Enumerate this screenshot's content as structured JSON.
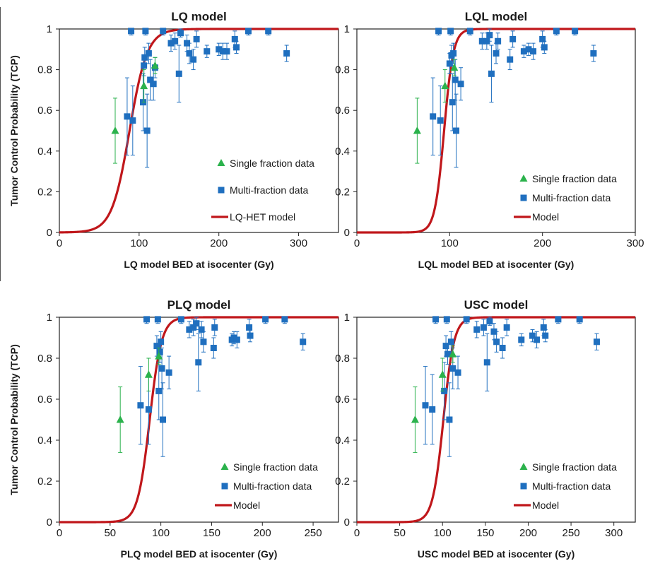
{
  "colors": {
    "model_curve": "#c0171b",
    "single_fraction": "#2bb24c",
    "multi_fraction": "#1f6fbf",
    "axis": "#222222"
  },
  "chart_data": [
    {
      "type": "scatter",
      "title": "LQ model",
      "xlabel": "LQ model BED at isocenter (Gy)",
      "ylabel": "Tumor Control Probability (TCP)",
      "xlim": [
        0,
        350
      ],
      "ylim": [
        0,
        1
      ],
      "xticks": [
        0,
        100,
        200,
        300
      ],
      "yticks": [
        0,
        0.2,
        0.4,
        0.6,
        0.8,
        1
      ],
      "legend": [
        "Single fraction data",
        "Multi-fraction data",
        "LQ-HET model"
      ],
      "curve": {
        "name": "LQ-HET model",
        "x0": 88,
        "k": 0.09
      },
      "single_fraction": [
        {
          "x": 70,
          "y": 0.5,
          "err": 0.16
        },
        {
          "x": 106,
          "y": 0.72,
          "err": 0.08
        },
        {
          "x": 120,
          "y": 0.82,
          "err": 0.04
        }
      ],
      "multi_fraction": [
        {
          "x": 85,
          "y": 0.57,
          "err": 0.19
        },
        {
          "x": 90,
          "y": 0.99,
          "err": 0.02
        },
        {
          "x": 92,
          "y": 0.55,
          "err": 0.17
        },
        {
          "x": 105,
          "y": 0.64,
          "err": 0.14
        },
        {
          "x": 106,
          "y": 0.82,
          "err": 0.05
        },
        {
          "x": 107,
          "y": 0.86,
          "err": 0.05
        },
        {
          "x": 108,
          "y": 0.99,
          "err": 0.02
        },
        {
          "x": 110,
          "y": 0.5,
          "err": 0.18
        },
        {
          "x": 112,
          "y": 0.88,
          "err": 0.05
        },
        {
          "x": 114,
          "y": 0.75,
          "err": 0.1
        },
        {
          "x": 118,
          "y": 0.73,
          "err": 0.08
        },
        {
          "x": 120,
          "y": 0.81,
          "err": 0.05
        },
        {
          "x": 130,
          "y": 0.99,
          "err": 0.02
        },
        {
          "x": 140,
          "y": 0.93,
          "err": 0.04
        },
        {
          "x": 145,
          "y": 0.94,
          "err": 0.04
        },
        {
          "x": 150,
          "y": 0.78,
          "err": 0.14
        },
        {
          "x": 152,
          "y": 0.98,
          "err": 0.02
        },
        {
          "x": 160,
          "y": 0.93,
          "err": 0.04
        },
        {
          "x": 163,
          "y": 0.88,
          "err": 0.05
        },
        {
          "x": 168,
          "y": 0.85,
          "err": 0.05
        },
        {
          "x": 172,
          "y": 0.95,
          "err": 0.04
        },
        {
          "x": 185,
          "y": 0.89,
          "err": 0.03
        },
        {
          "x": 200,
          "y": 0.9,
          "err": 0.03
        },
        {
          "x": 205,
          "y": 0.89,
          "err": 0.04
        },
        {
          "x": 210,
          "y": 0.89,
          "err": 0.04
        },
        {
          "x": 220,
          "y": 0.95,
          "err": 0.04
        },
        {
          "x": 222,
          "y": 0.91,
          "err": 0.03
        },
        {
          "x": 237,
          "y": 0.99,
          "err": 0.02
        },
        {
          "x": 262,
          "y": 0.99,
          "err": 0.02
        },
        {
          "x": 285,
          "y": 0.88,
          "err": 0.04
        }
      ]
    },
    {
      "type": "scatter",
      "title": "LQL model",
      "xlabel": "LQL model BED at isocenter (Gy)",
      "ylabel": "",
      "xlim": [
        0,
        300
      ],
      "ylim": [
        0,
        1
      ],
      "xticks": [
        0,
        100,
        200,
        300
      ],
      "yticks": [
        0,
        0.2,
        0.4,
        0.6,
        0.8,
        1
      ],
      "legend": [
        "Single fraction data",
        "Multi-fraction data",
        "Model"
      ],
      "curve": {
        "name": "Model",
        "x0": 94,
        "k": 0.2
      },
      "single_fraction": [
        {
          "x": 65,
          "y": 0.5,
          "err": 0.16
        },
        {
          "x": 95,
          "y": 0.72,
          "err": 0.08
        },
        {
          "x": 105,
          "y": 0.81,
          "err": 0.04
        }
      ],
      "multi_fraction": [
        {
          "x": 82,
          "y": 0.57,
          "err": 0.19
        },
        {
          "x": 88,
          "y": 0.99,
          "err": 0.02
        },
        {
          "x": 90,
          "y": 0.55,
          "err": 0.17
        },
        {
          "x": 100,
          "y": 0.83,
          "err": 0.05
        },
        {
          "x": 101,
          "y": 0.99,
          "err": 0.02
        },
        {
          "x": 102,
          "y": 0.87,
          "err": 0.05
        },
        {
          "x": 103,
          "y": 0.64,
          "err": 0.14
        },
        {
          "x": 104,
          "y": 0.88,
          "err": 0.05
        },
        {
          "x": 106,
          "y": 0.75,
          "err": 0.1
        },
        {
          "x": 107,
          "y": 0.5,
          "err": 0.18
        },
        {
          "x": 112,
          "y": 0.73,
          "err": 0.08
        },
        {
          "x": 122,
          "y": 0.99,
          "err": 0.02
        },
        {
          "x": 135,
          "y": 0.94,
          "err": 0.04
        },
        {
          "x": 140,
          "y": 0.94,
          "err": 0.04
        },
        {
          "x": 143,
          "y": 0.97,
          "err": 0.03
        },
        {
          "x": 145,
          "y": 0.78,
          "err": 0.14
        },
        {
          "x": 150,
          "y": 0.88,
          "err": 0.05
        },
        {
          "x": 152,
          "y": 0.94,
          "err": 0.04
        },
        {
          "x": 165,
          "y": 0.85,
          "err": 0.05
        },
        {
          "x": 168,
          "y": 0.95,
          "err": 0.04
        },
        {
          "x": 180,
          "y": 0.89,
          "err": 0.03
        },
        {
          "x": 185,
          "y": 0.9,
          "err": 0.03
        },
        {
          "x": 190,
          "y": 0.89,
          "err": 0.04
        },
        {
          "x": 200,
          "y": 0.95,
          "err": 0.04
        },
        {
          "x": 202,
          "y": 0.91,
          "err": 0.03
        },
        {
          "x": 215,
          "y": 0.99,
          "err": 0.02
        },
        {
          "x": 235,
          "y": 0.99,
          "err": 0.02
        },
        {
          "x": 255,
          "y": 0.88,
          "err": 0.04
        }
      ]
    },
    {
      "type": "scatter",
      "title": "PLQ model",
      "xlabel": "PLQ model BED at isocenter (Gy)",
      "ylabel": "Tumor Control Probability (TCP)",
      "xlim": [
        0,
        275
      ],
      "ylim": [
        0,
        1
      ],
      "xticks": [
        0,
        50,
        100,
        150,
        200,
        250
      ],
      "yticks": [
        0,
        0.2,
        0.4,
        0.6,
        0.8,
        1
      ],
      "legend": [
        "Single fraction data",
        "Multi-fraction data",
        "Model"
      ],
      "curve": {
        "name": "Model",
        "x0": 89,
        "k": 0.17
      },
      "single_fraction": [
        {
          "x": 60,
          "y": 0.5,
          "err": 0.16
        },
        {
          "x": 88,
          "y": 0.72,
          "err": 0.08
        },
        {
          "x": 98,
          "y": 0.81,
          "err": 0.04
        }
      ],
      "multi_fraction": [
        {
          "x": 80,
          "y": 0.57,
          "err": 0.19
        },
        {
          "x": 86,
          "y": 0.99,
          "err": 0.02
        },
        {
          "x": 88,
          "y": 0.55,
          "err": 0.17
        },
        {
          "x": 96,
          "y": 0.86,
          "err": 0.05
        },
        {
          "x": 97,
          "y": 0.99,
          "err": 0.02
        },
        {
          "x": 98,
          "y": 0.64,
          "err": 0.14
        },
        {
          "x": 99,
          "y": 0.83,
          "err": 0.05
        },
        {
          "x": 100,
          "y": 0.88,
          "err": 0.05
        },
        {
          "x": 101,
          "y": 0.75,
          "err": 0.1
        },
        {
          "x": 102,
          "y": 0.5,
          "err": 0.18
        },
        {
          "x": 108,
          "y": 0.73,
          "err": 0.08
        },
        {
          "x": 120,
          "y": 0.99,
          "err": 0.02
        },
        {
          "x": 128,
          "y": 0.94,
          "err": 0.04
        },
        {
          "x": 132,
          "y": 0.95,
          "err": 0.04
        },
        {
          "x": 135,
          "y": 0.97,
          "err": 0.03
        },
        {
          "x": 137,
          "y": 0.78,
          "err": 0.14
        },
        {
          "x": 140,
          "y": 0.94,
          "err": 0.04
        },
        {
          "x": 142,
          "y": 0.88,
          "err": 0.05
        },
        {
          "x": 152,
          "y": 0.85,
          "err": 0.05
        },
        {
          "x": 153,
          "y": 0.95,
          "err": 0.04
        },
        {
          "x": 170,
          "y": 0.89,
          "err": 0.03
        },
        {
          "x": 172,
          "y": 0.9,
          "err": 0.03
        },
        {
          "x": 175,
          "y": 0.89,
          "err": 0.04
        },
        {
          "x": 187,
          "y": 0.95,
          "err": 0.04
        },
        {
          "x": 188,
          "y": 0.91,
          "err": 0.03
        },
        {
          "x": 203,
          "y": 0.99,
          "err": 0.02
        },
        {
          "x": 222,
          "y": 0.99,
          "err": 0.02
        },
        {
          "x": 240,
          "y": 0.88,
          "err": 0.04
        }
      ]
    },
    {
      "type": "scatter",
      "title": "USC model",
      "xlabel": "USC model BED at isocenter (Gy)",
      "ylabel": "",
      "xlim": [
        0,
        325
      ],
      "ylim": [
        0,
        1
      ],
      "xticks": [
        0,
        50,
        100,
        150,
        200,
        250,
        300
      ],
      "yticks": [
        0,
        0.2,
        0.4,
        0.6,
        0.8,
        1
      ],
      "legend": [
        "Single fraction data",
        "Multi-fraction data",
        "Model"
      ],
      "curve": {
        "name": "Model",
        "x0": 101,
        "k": 0.16
      },
      "single_fraction": [
        {
          "x": 68,
          "y": 0.5,
          "err": 0.16
        },
        {
          "x": 100,
          "y": 0.72,
          "err": 0.08
        },
        {
          "x": 112,
          "y": 0.82,
          "err": 0.04
        }
      ],
      "multi_fraction": [
        {
          "x": 80,
          "y": 0.57,
          "err": 0.19
        },
        {
          "x": 88,
          "y": 0.55,
          "err": 0.17
        },
        {
          "x": 92,
          "y": 0.99,
          "err": 0.02
        },
        {
          "x": 102,
          "y": 0.64,
          "err": 0.14
        },
        {
          "x": 104,
          "y": 0.86,
          "err": 0.05
        },
        {
          "x": 105,
          "y": 0.99,
          "err": 0.02
        },
        {
          "x": 106,
          "y": 0.82,
          "err": 0.05
        },
        {
          "x": 108,
          "y": 0.5,
          "err": 0.18
        },
        {
          "x": 110,
          "y": 0.88,
          "err": 0.05
        },
        {
          "x": 112,
          "y": 0.75,
          "err": 0.1
        },
        {
          "x": 118,
          "y": 0.73,
          "err": 0.08
        },
        {
          "x": 128,
          "y": 0.99,
          "err": 0.02
        },
        {
          "x": 140,
          "y": 0.94,
          "err": 0.04
        },
        {
          "x": 148,
          "y": 0.95,
          "err": 0.04
        },
        {
          "x": 152,
          "y": 0.78,
          "err": 0.14
        },
        {
          "x": 155,
          "y": 0.98,
          "err": 0.02
        },
        {
          "x": 160,
          "y": 0.93,
          "err": 0.04
        },
        {
          "x": 163,
          "y": 0.88,
          "err": 0.05
        },
        {
          "x": 170,
          "y": 0.85,
          "err": 0.05
        },
        {
          "x": 175,
          "y": 0.95,
          "err": 0.04
        },
        {
          "x": 192,
          "y": 0.89,
          "err": 0.03
        },
        {
          "x": 205,
          "y": 0.91,
          "err": 0.03
        },
        {
          "x": 210,
          "y": 0.89,
          "err": 0.04
        },
        {
          "x": 218,
          "y": 0.95,
          "err": 0.04
        },
        {
          "x": 220,
          "y": 0.91,
          "err": 0.03
        },
        {
          "x": 235,
          "y": 0.99,
          "err": 0.02
        },
        {
          "x": 260,
          "y": 0.99,
          "err": 0.02
        },
        {
          "x": 280,
          "y": 0.88,
          "err": 0.04
        }
      ]
    }
  ]
}
